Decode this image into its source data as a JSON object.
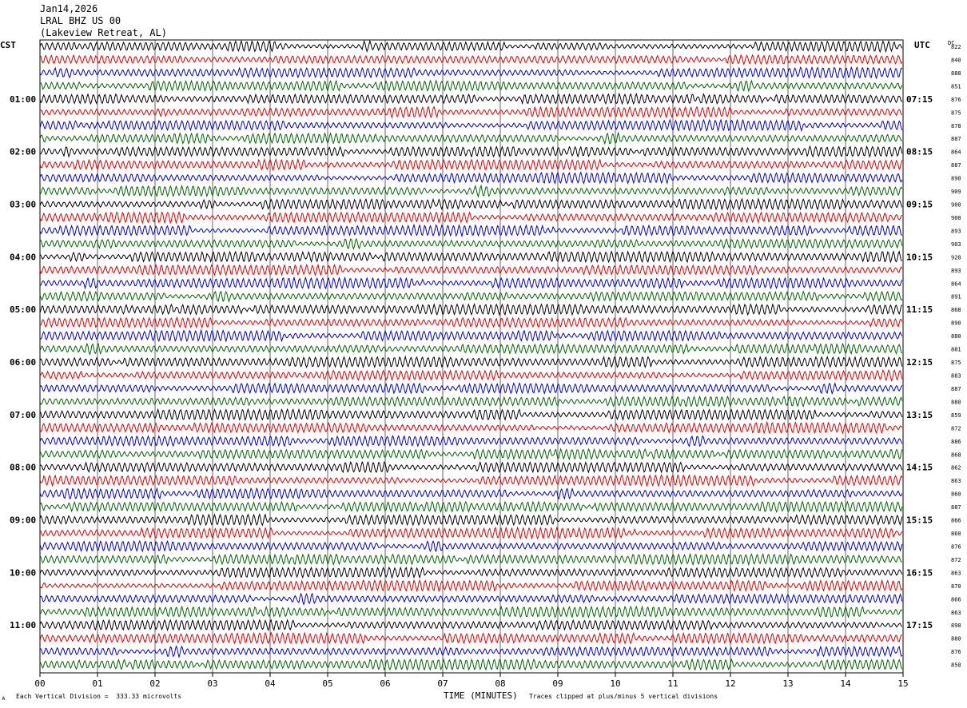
{
  "header": {
    "date": "Jan14,2026",
    "station": "LRAL BHZ US 00",
    "location": "(Lakeview Retreat, AL)"
  },
  "left_timezone": "CST",
  "right_timezone": "UTC",
  "dc_label": "DC",
  "footer": {
    "scale_note": "Each Vertical Division =  333.33 microvolts",
    "clip_note": "Traces clipped at plus/minus 5 vertical divisions",
    "corner_mark": "ᴀ"
  },
  "chart_data": {
    "type": "line",
    "title": "",
    "xlabel": "TIME (MINUTES)",
    "xlim": [
      0,
      15
    ],
    "xticks": [
      "00",
      "01",
      "02",
      "03",
      "04",
      "05",
      "06",
      "07",
      "08",
      "09",
      "10",
      "11",
      "12",
      "13",
      "14",
      "15"
    ],
    "grid": true,
    "trace_colors": [
      "#000000",
      "#e00000",
      "#0000d0",
      "#006400"
    ],
    "rows_per_hour": 4,
    "minutes_per_row": 15,
    "cst_hour_labels": [
      "",
      "01:00",
      "02:00",
      "03:00",
      "04:00",
      "05:00",
      "06:00",
      "07:00",
      "08:00",
      "09:00",
      "10:00",
      "11:00"
    ],
    "utc_hour_labels": [
      "",
      "07:15",
      "08:15",
      "09:15",
      "10:15",
      "11:15",
      "12:15",
      "13:15",
      "14:15",
      "15:15",
      "16:15",
      "17:15"
    ],
    "dc_offsets": [
      822,
      840,
      888,
      851,
      876,
      875,
      878,
      887,
      864,
      887,
      890,
      909,
      900,
      900,
      893,
      903,
      920,
      893,
      864,
      891,
      868,
      890,
      880,
      881,
      875,
      883,
      887,
      880,
      859,
      872,
      886,
      868,
      862,
      863,
      860,
      887,
      866,
      860,
      876,
      872,
      863,
      870,
      866,
      863,
      890,
      880,
      876,
      850
    ]
  }
}
